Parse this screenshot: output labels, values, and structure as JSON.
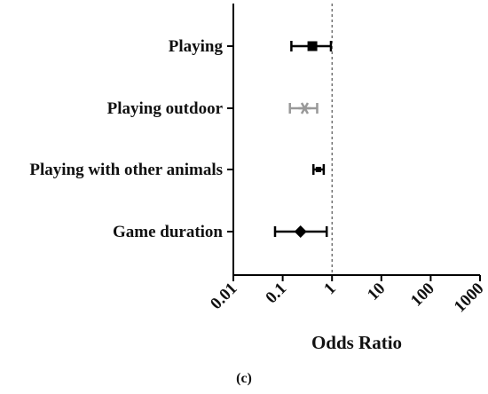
{
  "panel_label": "(c)",
  "chart_data": {
    "type": "forest",
    "title": "",
    "xlabel": "Odds Ratio",
    "ylabel": "",
    "xscale": "log",
    "xlim": [
      0.01,
      1000
    ],
    "xticks": [
      "0.01",
      "0.1",
      "1",
      "10",
      "100",
      "1000"
    ],
    "reference_line": 1,
    "grid": false,
    "categories": [
      "Playing",
      "Playing outdoor",
      "Playing with other animals",
      "Game duration"
    ],
    "points": [
      {
        "label": "Playing",
        "or": 0.4,
        "ci_low": 0.15,
        "ci_high": 0.95,
        "marker": "square",
        "color": "#000000"
      },
      {
        "label": "Playing outdoor",
        "or": 0.28,
        "ci_low": 0.14,
        "ci_high": 0.5,
        "marker": "asterisk",
        "color": "#999999"
      },
      {
        "label": "Playing with other animals",
        "or": 0.53,
        "ci_low": 0.42,
        "ci_high": 0.68,
        "marker": "square",
        "color": "#000000"
      },
      {
        "label": "Game duration",
        "or": 0.23,
        "ci_low": 0.07,
        "ci_high": 0.78,
        "marker": "diamond",
        "color": "#000000"
      }
    ]
  }
}
